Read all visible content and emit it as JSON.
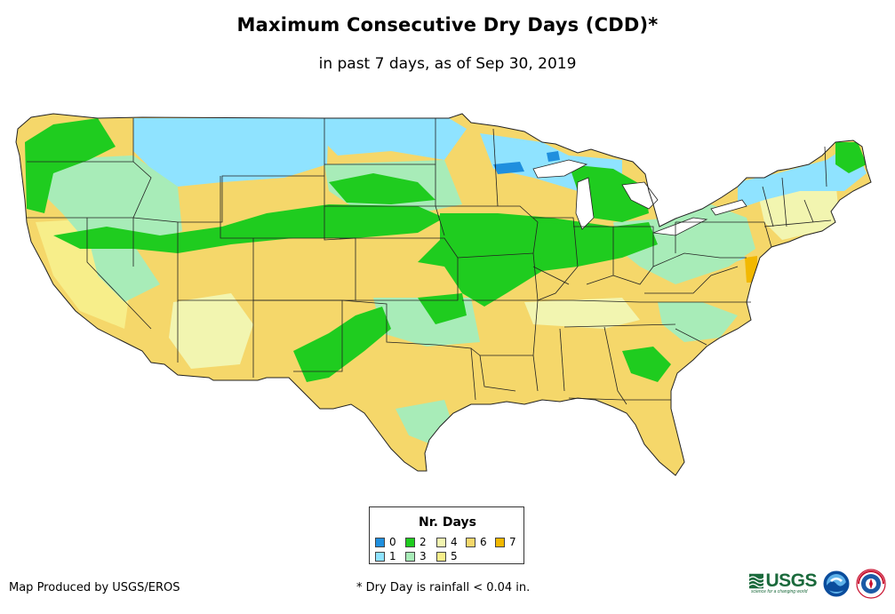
{
  "header": {
    "title": "Maximum Consecutive Dry Days (CDD)*",
    "subtitle": "in past 7 days, as of Sep 30, 2019"
  },
  "legend": {
    "title": "Nr. Days",
    "items": [
      {
        "label": "0",
        "color": "#1f8fde"
      },
      {
        "label": "1",
        "color": "#8fe3ff"
      },
      {
        "label": "2",
        "color": "#1fcc1f"
      },
      {
        "label": "3",
        "color": "#a8ecb8"
      },
      {
        "label": "4",
        "color": "#f2f5b0"
      },
      {
        "label": "5",
        "color": "#f7ee8a"
      },
      {
        "label": "6",
        "color": "#f5d76a"
      },
      {
        "label": "7",
        "color": "#f2b800"
      }
    ]
  },
  "footer": {
    "credit": "Map Produced by USGS/EROS",
    "footnote": "* Dry Day is rainfall < 0.04 in.",
    "usgs_logo_text": "USGS",
    "usgs_tagline": "science for a changing world"
  },
  "logos": {
    "noaa": "noaa",
    "nws": "NATIONAL WEATHER SERVICE"
  }
}
